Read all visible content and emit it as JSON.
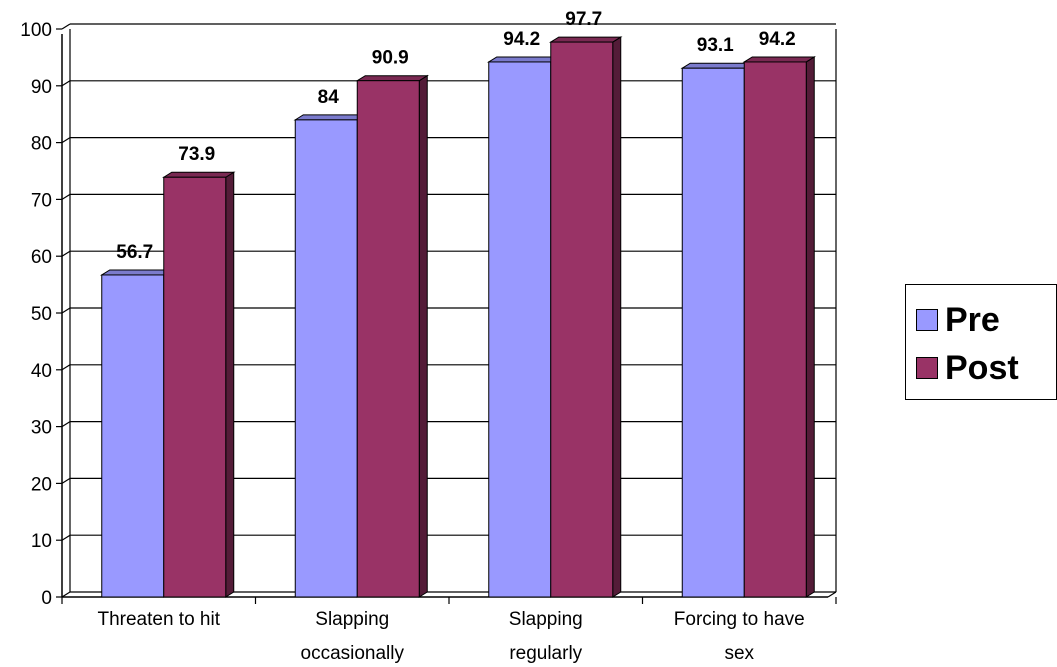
{
  "chart_data": {
    "type": "bar",
    "title": "",
    "xlabel": "",
    "ylabel": "",
    "ylim": [
      0,
      100
    ],
    "yticks": [
      0,
      10,
      20,
      30,
      40,
      50,
      60,
      70,
      80,
      90,
      100
    ],
    "grid": true,
    "style": "3d-clustered-bar",
    "legend_position": "right",
    "categories": [
      [
        "Threaten to hit"
      ],
      [
        "Slapping",
        "occasionally"
      ],
      [
        "Slapping",
        "regularly"
      ],
      [
        "Forcing to have",
        "sex"
      ]
    ],
    "series": [
      {
        "name": "Pre",
        "color": "#9999ff",
        "values": [
          56.7,
          84,
          94.2,
          93.1
        ],
        "labels": [
          "56.7",
          "84",
          "94.2",
          "93.1"
        ]
      },
      {
        "name": "Post",
        "color": "#993366",
        "values": [
          73.9,
          90.9,
          97.7,
          94.2
        ],
        "labels": [
          "73.9",
          "90.9",
          "97.7",
          "94.2"
        ]
      }
    ]
  }
}
